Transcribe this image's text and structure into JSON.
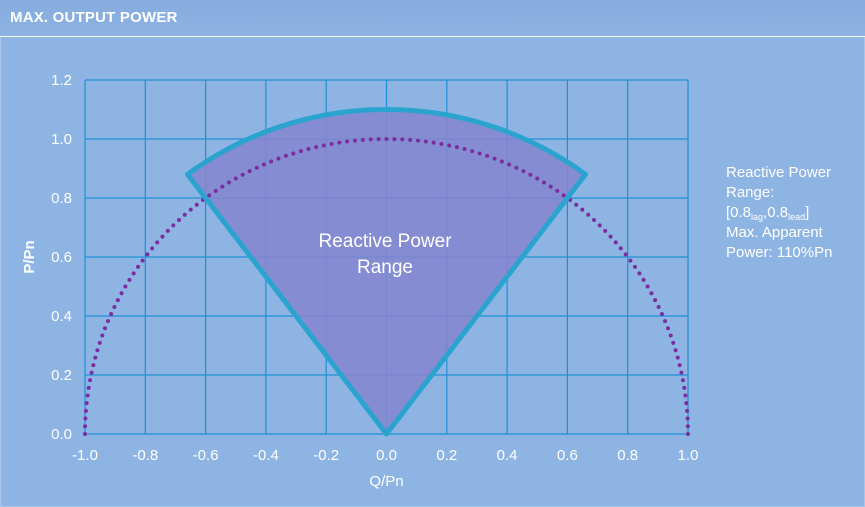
{
  "title": "MAX. OUTPUT POWER",
  "chart_data": {
    "type": "area",
    "xlabel": "Q/Pn",
    "ylabel": "P/Pn",
    "xlim": [
      -1.0,
      1.0
    ],
    "ylim": [
      0.0,
      1.2
    ],
    "x_ticks": [
      "-1.0",
      "-0.8",
      "-0.6",
      "-0.4",
      "-0.2",
      "0.0",
      "0.2",
      "0.4",
      "0.6",
      "0.8",
      "1.0"
    ],
    "y_ticks": [
      "0.0",
      "0.2",
      "0.4",
      "0.6",
      "0.8",
      "1.0",
      "1.2"
    ],
    "grid": true,
    "series": [
      {
        "name": "Reactive Power Range",
        "kind": "sector",
        "radius": 1.1,
        "power_factor": 0.8,
        "vertices": [
          [
            0,
            0
          ],
          [
            -0.66,
            0.88
          ],
          [
            0,
            1.1
          ],
          [
            0.66,
            0.88
          ]
        ],
        "fill": "#8486cf",
        "stroke": "#2aa4cf"
      },
      {
        "kind": "semicircle-dotted",
        "radius": 1.0,
        "color": "#7a2da0"
      }
    ],
    "annotation": [
      "Reactive Power",
      "Range"
    ]
  },
  "note": {
    "line1": "Reactive Power",
    "line2": "Range:",
    "range_open": "[0.8",
    "lag": "lag",
    "comma": ",0.8",
    "lead": "lead",
    "range_close": "]",
    "line4": "Max. Apparent",
    "line5": "Power: 110%Pn"
  },
  "colors": {
    "background": "#8eb4e3",
    "grid": "#1f8fd6",
    "sector_fill": "#8486cf",
    "sector_stroke": "#2aa4cf",
    "dots": "#7a2da0",
    "text": "#ffffff"
  }
}
